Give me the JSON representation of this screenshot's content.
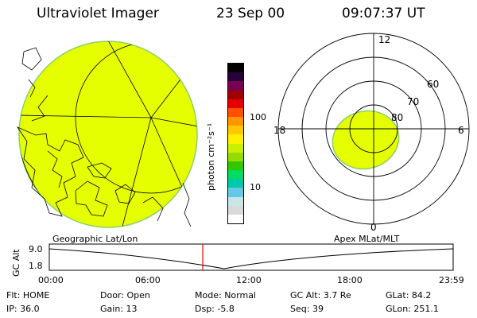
{
  "header": {
    "instrument": "Ultraviolet Imager",
    "date": "23 Sep 00",
    "time": "09:07:37 UT"
  },
  "colorbar": {
    "unit_label": "photon cm⁻²s⁻¹",
    "ticks": [
      "100",
      "10"
    ],
    "colors": [
      "#ffffff",
      "#d9d9d9",
      "#c8e6e6",
      "#64c8e6",
      "#00c8aa",
      "#00dc64",
      "#32c800",
      "#96dc00",
      "#c8f000",
      "#fff000",
      "#ffc800",
      "#ff9600",
      "#ff5000",
      "#e60000",
      "#a00000",
      "#780050",
      "#28003c",
      "#000000"
    ]
  },
  "polar": {
    "mlt_labels": [
      "12",
      "18",
      "6",
      "0"
    ],
    "lat_labels": [
      "60",
      "70",
      "80"
    ]
  },
  "timeline": {
    "left_label": "Geographic Lat/Lon",
    "right_label": "Apex MLat/MLT",
    "axis_label": "GC Alt",
    "y_ticks": [
      "9.0",
      "1.8"
    ],
    "x_ticks": [
      "00:00",
      "06:00",
      "12:00",
      "18:00",
      "23:59"
    ],
    "marker_color": "#e60000",
    "marker_time_fraction": 0.38
  },
  "status": {
    "row1": [
      {
        "k": "Flt:",
        "v": "HOME"
      },
      {
        "k": "Door:",
        "v": "Open"
      },
      {
        "k": "Mode:",
        "v": "Normal"
      },
      {
        "k": "GC Alt:",
        "v": "3.7 Re"
      },
      {
        "k": "GLat:",
        "v": "84.2"
      }
    ],
    "row2": [
      {
        "k": "IP:",
        "v": "36.0"
      },
      {
        "k": "Gain:",
        "v": "13"
      },
      {
        "k": "Dsp:",
        "v": "-5.8"
      },
      {
        "k": "Seq:",
        "v": "39"
      },
      {
        "k": "GLon:",
        "v": "251.1"
      }
    ]
  },
  "image_fill": "#e6ff00"
}
